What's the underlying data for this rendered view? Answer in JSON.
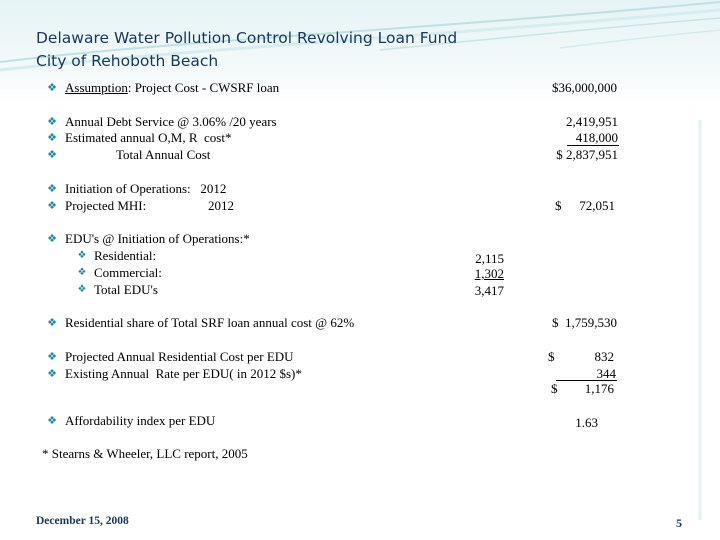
{
  "slide": {
    "title_line1": "Delaware Water Pollution Control Revolving Loan Fund",
    "title_line2": "City of Rehoboth Beach",
    "assumption_label": "Assumption",
    "assumption_rest": ": Project Cost - CWSRF loan",
    "assumption_value": "$36,000,000",
    "debt_service_label": "Annual Debt Service @ 3.06% /20 years",
    "debt_service_value": "2,419,951",
    "omr_label": "Estimated annual O,M, R  cost*",
    "omr_value": "418,000",
    "total_label": "Total Annual Cost",
    "total_value": "$ 2,837,951",
    "initiation_label": "Initiation of Operations:   2012",
    "mhi_label": "Projected MHI:                   2012",
    "mhi_dollar": "$",
    "mhi_value": "72,051",
    "edu_label": "EDU's @ Initiation of Operations:*",
    "residential_label": "Residential:",
    "residential_value": "2,115",
    "commercial_label": "Commercial:",
    "commercial_value": "1,302",
    "total_edu_label": "Total EDU's",
    "total_edu_value": "3,417",
    "res_share_label": "Residential share of Total SRF loan annual cost @ 62%",
    "res_share_value": "$  1,759,530",
    "proj_res_label": "Projected Annual Residential Cost per EDU",
    "proj_res_dollar": "$",
    "proj_res_value": "832",
    "existing_label": "Existing Annual  Rate per EDU( in 2012 $s)*",
    "existing_value": "344",
    "sum_dollar": "$",
    "sum_value": "1,176",
    "afford_label": "Affordability index per EDU",
    "afford_value": "1.63",
    "footnote": "* Stearns & Wheeler, LLC report, 2005",
    "footer_date": "December 15, 2008",
    "page_number": "5"
  },
  "colors": {
    "title": "#17375e",
    "bullet": "#1e8aa0",
    "accent_band": "#cfe8ec"
  },
  "icons": {
    "bullet": "wingdings-bullet-icon"
  }
}
